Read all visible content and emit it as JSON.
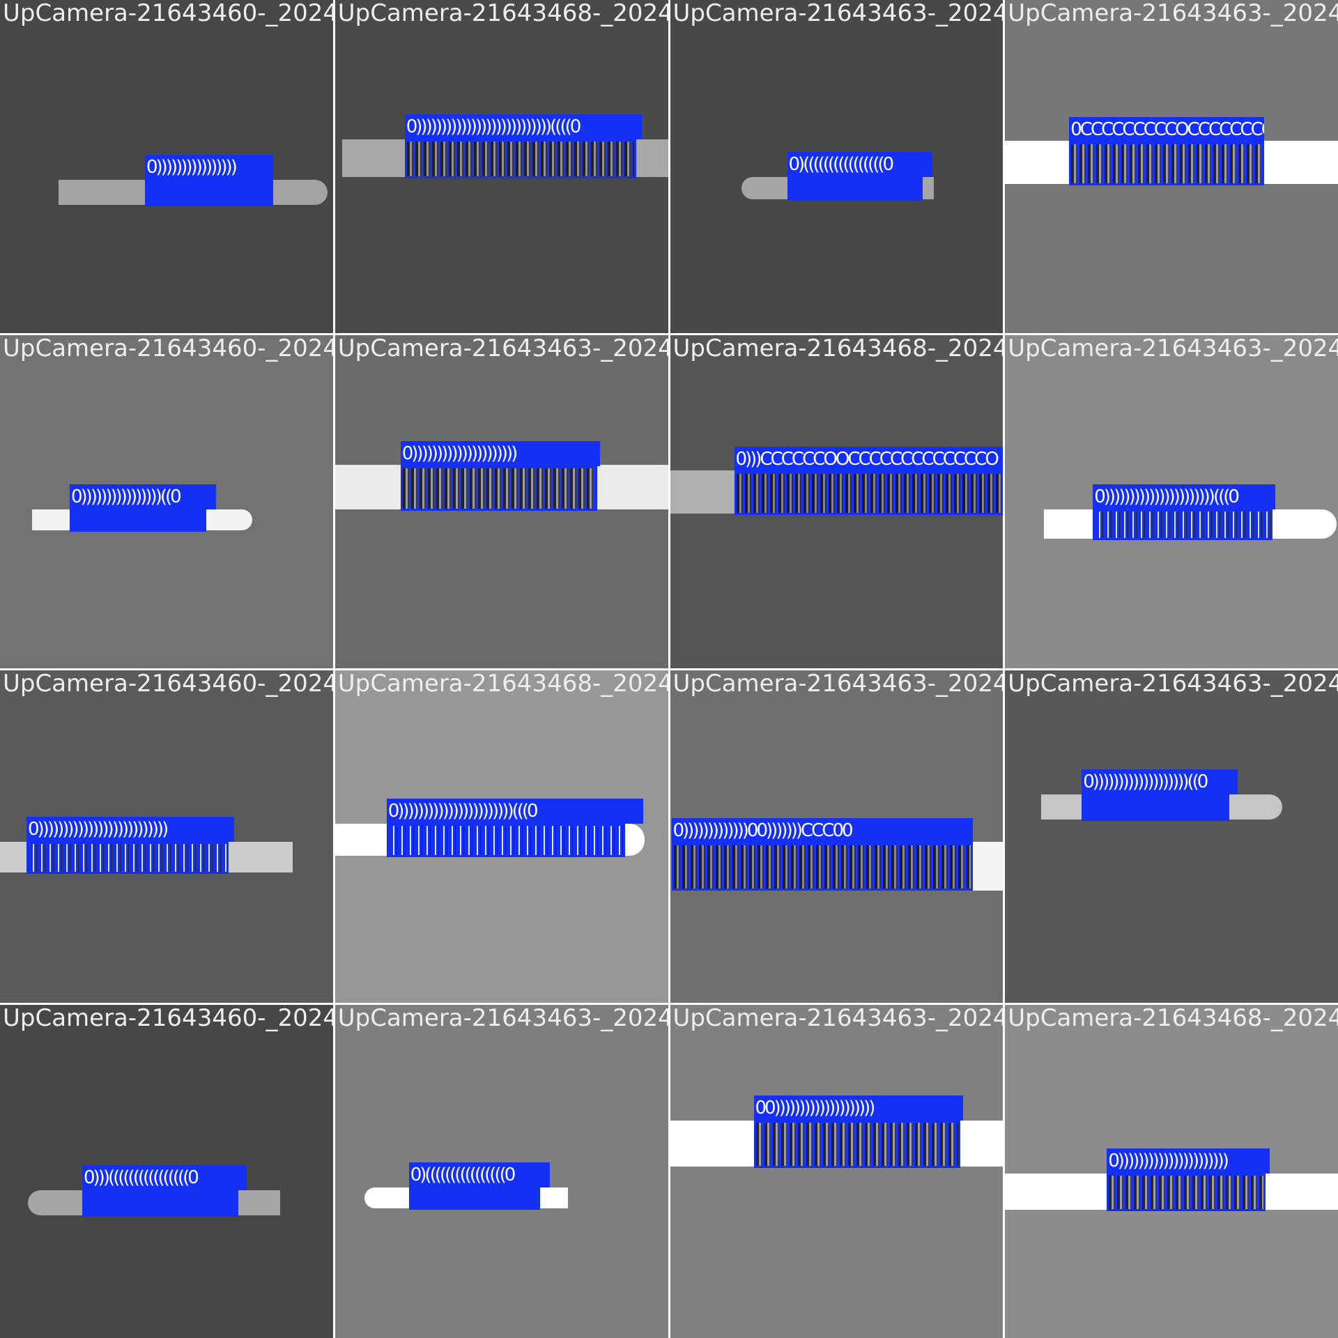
{
  "tiles": [
    {
      "label": "UpCamera-21643460-_2024",
      "bg": "#474747",
      "bar": "#a3a3a3",
      "det_label": "0))))))))))))))))",
      "fill": "solid"
    },
    {
      "label": "UpCamera-21643468-_2024",
      "bg": "#4a4a4a",
      "bar": "#a8a8a8",
      "det_label": "0)))))))))))))))))))))))))))((((0",
      "fill": "striped"
    },
    {
      "label": "UpCamera-21643463-_2024",
      "bg": "#484848",
      "bar": "#a5a5a5",
      "det_label": "0)((((((((((((((((0",
      "fill": "solid"
    },
    {
      "label": "UpCamera-21643463-_2024",
      "bg": "#777777",
      "bar": "#ffffff",
      "det_label": "0CCCCCCCCCOCCCCCCCO",
      "fill": "striped"
    },
    {
      "label": "UpCamera-21643460-_2024",
      "bg": "#727272",
      "bar": "#f2f2f2",
      "det_label": "0))))))))))))))))((0",
      "fill": "solid"
    },
    {
      "label": "UpCamera-21643463-_2024",
      "bg": "#6a6a6a",
      "bar": "#ebebeb",
      "det_label": "0)))))))))))))))))))))",
      "fill": "striped"
    },
    {
      "label": "UpCamera-21643468-_2024",
      "bg": "#555555",
      "bar": "#b0b0b0",
      "det_label": "0)))CCCCCCOOCCCCCCCCCCCCCO",
      "fill": "striped"
    },
    {
      "label": "UpCamera-21643463-_2024",
      "bg": "#8a8a8a",
      "bar": "#ffffff",
      "det_label": "0))))))))))))))))))))))(((0",
      "fill": "lines"
    },
    {
      "label": "UpCamera-21643460-_2024",
      "bg": "#5a5a5a",
      "bar": "#cccccc",
      "det_label": "0))))))))))))))))))))))))))",
      "fill": "lines"
    },
    {
      "label": "UpCamera-21643468-_2024",
      "bg": "#979797",
      "bar": "#ffffff",
      "det_label": "0)))))))))))))))))))))))(((0",
      "fill": "lines"
    },
    {
      "label": "UpCamera-21643463-_2024",
      "bg": "#6f6f6f",
      "bar": "#f4f4f4",
      "det_label": "0)))))))))))))00)))))))CCC00",
      "fill": "striped"
    },
    {
      "label": "UpCamera-21643463-_2024",
      "bg": "#585858",
      "bar": "#c6c6c6",
      "det_label": "0)))))))))))))))))))((0",
      "fill": "solid"
    },
    {
      "label": "UpCamera-21643460-_2024",
      "bg": "#474747",
      "bar": "#a6a6a6",
      "det_label": "0)))((((((((((((((((0",
      "fill": "solid"
    },
    {
      "label": "UpCamera-21643463-_2024",
      "bg": "#7e7e7e",
      "bar": "#ffffff",
      "det_label": "0)((((((((((((((((0",
      "fill": "solid"
    },
    {
      "label": "UpCamera-21643463-_2024",
      "bg": "#808080",
      "bar": "#ffffff",
      "det_label": "00))))))))))))))))))))",
      "fill": "striped"
    },
    {
      "label": "UpCamera-21643468-_2024",
      "bg": "#8c8c8c",
      "bar": "#ffffff",
      "det_label": "0))))))))))))))))))))))",
      "fill": "striped"
    }
  ]
}
